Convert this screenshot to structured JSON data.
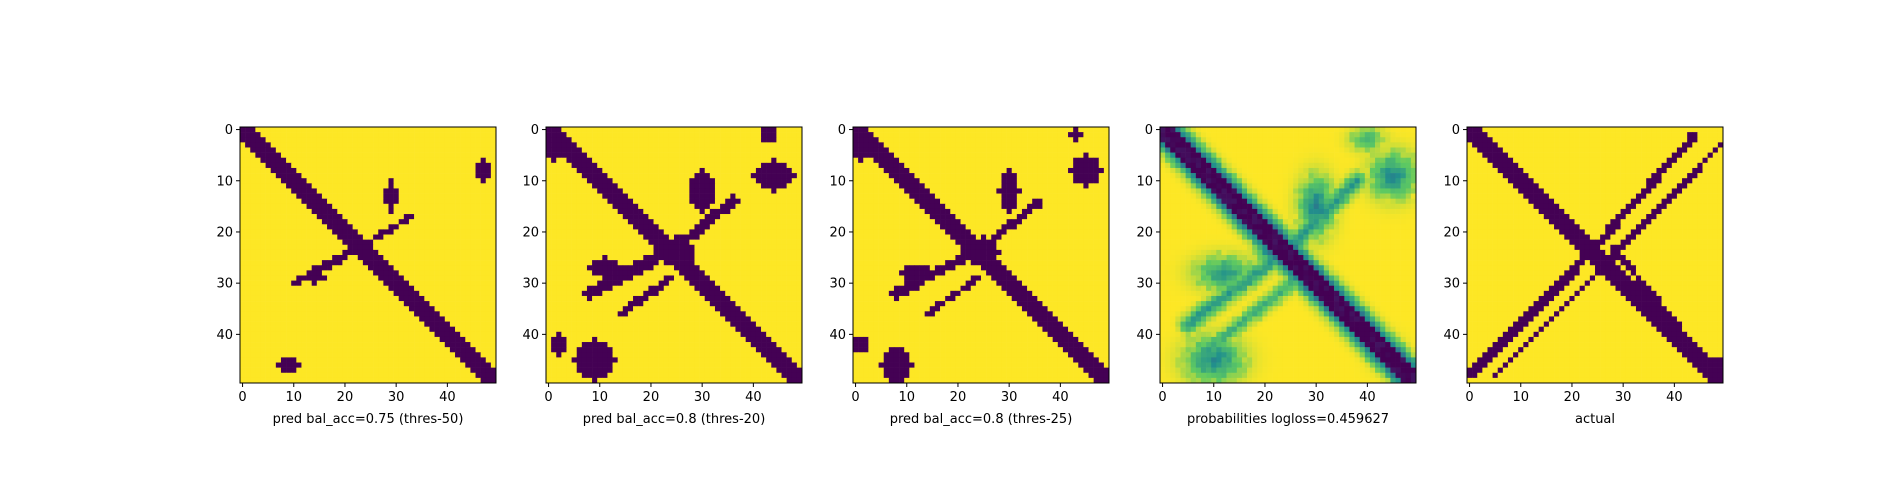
{
  "chart_data": [
    {
      "type": "heatmap",
      "label": "pred bal_acc=0.75 (thres-50)",
      "size": 50,
      "xticks": [
        0,
        10,
        20,
        30,
        40
      ],
      "yticks": [
        0,
        10,
        20,
        30,
        40
      ],
      "colormap": "viridis",
      "main_diagonal": {
        "from": [
          0,
          0
        ],
        "to": [
          49,
          49
        ],
        "width": 1.5
      },
      "blobs": [
        {
          "cx": 23,
          "cy": 23,
          "rx": 2.5,
          "ry": 2.0
        },
        {
          "cx": 29,
          "cy": 13,
          "rx": 1.2,
          "ry": 3.0
        },
        {
          "cx": 47,
          "cy": 8,
          "rx": 1.2,
          "ry": 2.0
        },
        {
          "cx": 9,
          "cy": 46,
          "rx": 2.0,
          "ry": 1.5
        },
        {
          "cx": 14,
          "cy": 29,
          "rx": 2.0,
          "ry": 1.0
        }
      ],
      "anti_segments": [
        {
          "from": [
            10,
            30
          ],
          "to": [
            23,
            23
          ],
          "width": 0.8
        },
        {
          "from": [
            23,
            23
          ],
          "to": [
            33,
            17
          ],
          "width": 0.6
        }
      ]
    },
    {
      "type": "heatmap",
      "label": "pred bal_acc=0.8 (thres-20)",
      "size": 50,
      "xticks": [
        0,
        10,
        20,
        30,
        40
      ],
      "yticks": [
        0,
        10,
        20,
        30,
        40
      ],
      "colormap": "viridis",
      "main_diagonal": {
        "from": [
          0,
          0
        ],
        "to": [
          49,
          49
        ],
        "width": 2.0
      },
      "blobs": [
        {
          "cx": 1,
          "cy": 3,
          "rx": 2.5,
          "ry": 3.0
        },
        {
          "cx": 25,
          "cy": 24,
          "rx": 3.5,
          "ry": 3.0
        },
        {
          "cx": 30,
          "cy": 12,
          "rx": 2.5,
          "ry": 4.0
        },
        {
          "cx": 44,
          "cy": 9,
          "rx": 4.0,
          "ry": 3.0
        },
        {
          "cx": 43,
          "cy": 1,
          "rx": 1.5,
          "ry": 1.5
        },
        {
          "cx": 9,
          "cy": 45,
          "rx": 4.0,
          "ry": 4.0
        },
        {
          "cx": 2,
          "cy": 42,
          "rx": 1.5,
          "ry": 2.0
        },
        {
          "cx": 11,
          "cy": 27,
          "rx": 3.0,
          "ry": 2.0
        }
      ],
      "anti_segments": [
        {
          "from": [
            8,
            32
          ],
          "to": [
            25,
            23
          ],
          "width": 1.2
        },
        {
          "from": [
            25,
            23
          ],
          "to": [
            36,
            14
          ],
          "width": 1.0
        },
        {
          "from": [
            14,
            36
          ],
          "to": [
            24,
            29
          ],
          "width": 0.8
        }
      ]
    },
    {
      "type": "heatmap",
      "label": "pred bal_acc=0.8 (thres-25)",
      "size": 50,
      "xticks": [
        0,
        10,
        20,
        30,
        40
      ],
      "yticks": [
        0,
        10,
        20,
        30,
        40
      ],
      "colormap": "viridis",
      "main_diagonal": {
        "from": [
          0,
          0
        ],
        "to": [
          49,
          49
        ],
        "width": 1.8
      },
      "blobs": [
        {
          "cx": 1,
          "cy": 3,
          "rx": 2.0,
          "ry": 3.0
        },
        {
          "cx": 25,
          "cy": 24,
          "rx": 3.0,
          "ry": 3.0
        },
        {
          "cx": 30,
          "cy": 12,
          "rx": 2.0,
          "ry": 4.0
        },
        {
          "cx": 45,
          "cy": 8,
          "rx": 3.0,
          "ry": 3.0
        },
        {
          "cx": 43,
          "cy": 1,
          "rx": 1.2,
          "ry": 1.2
        },
        {
          "cx": 8,
          "cy": 46,
          "rx": 3.0,
          "ry": 3.5
        },
        {
          "cx": 1,
          "cy": 42,
          "rx": 1.5,
          "ry": 1.5
        },
        {
          "cx": 12,
          "cy": 28,
          "rx": 3.0,
          "ry": 1.8
        }
      ],
      "anti_segments": [
        {
          "from": [
            8,
            32
          ],
          "to": [
            25,
            23
          ],
          "width": 1.0
        },
        {
          "from": [
            25,
            23
          ],
          "to": [
            36,
            14
          ],
          "width": 0.8
        },
        {
          "from": [
            14,
            36
          ],
          "to": [
            24,
            29
          ],
          "width": 0.6
        }
      ]
    },
    {
      "type": "heatmap",
      "label": "probabilities logloss=0.459627",
      "size": 50,
      "xticks": [
        0,
        10,
        20,
        30,
        40
      ],
      "yticks": [
        0,
        10,
        20,
        30,
        40
      ],
      "colormap": "viridis",
      "continuous": true,
      "main_diagonal": {
        "from": [
          0,
          0
        ],
        "to": [
          49,
          49
        ],
        "width": 1.6
      },
      "blobs": [
        {
          "cx": 30,
          "cy": 15,
          "rx": 3.0,
          "ry": 5.0,
          "v": 0.55
        },
        {
          "cx": 45,
          "cy": 9,
          "rx": 4.0,
          "ry": 4.0,
          "v": 0.5
        },
        {
          "cx": 40,
          "cy": 2,
          "rx": 3.0,
          "ry": 2.0,
          "v": 0.35
        },
        {
          "cx": 10,
          "cy": 45,
          "rx": 5.0,
          "ry": 4.0,
          "v": 0.5
        },
        {
          "cx": 12,
          "cy": 28,
          "rx": 5.0,
          "ry": 3.0,
          "v": 0.45
        },
        {
          "cx": 22,
          "cy": 23,
          "rx": 3.0,
          "ry": 3.0,
          "v": 0.8
        },
        {
          "cx": 44,
          "cy": 44,
          "rx": 3.0,
          "ry": 3.0,
          "v": 0.25
        }
      ],
      "anti_segments": [
        {
          "from": [
            5,
            38
          ],
          "to": [
            24,
            24
          ],
          "width": 1.0,
          "v": 0.45
        },
        {
          "from": [
            24,
            24
          ],
          "to": [
            38,
            10
          ],
          "width": 1.0,
          "v": 0.45
        },
        {
          "from": [
            10,
            42
          ],
          "to": [
            28,
            28
          ],
          "width": 0.8,
          "v": 0.35
        }
      ]
    },
    {
      "type": "heatmap",
      "label": "actual",
      "size": 50,
      "xticks": [
        0,
        10,
        20,
        30,
        40
      ],
      "yticks": [
        0,
        10,
        20,
        30,
        40
      ],
      "colormap": "viridis",
      "main_diagonal": {
        "from": [
          0,
          0
        ],
        "to": [
          49,
          49
        ],
        "width": 1.5
      },
      "blobs": [
        {
          "cx": 48,
          "cy": 47,
          "rx": 2.5,
          "ry": 2.5
        }
      ],
      "anti_segments": [
        {
          "from": [
            0,
            48
          ],
          "to": [
            20,
            28
          ],
          "width": 0.8
        },
        {
          "from": [
            20,
            28
          ],
          "to": [
            44,
            1
          ],
          "width": 0.8
        },
        {
          "from": [
            5,
            48
          ],
          "to": [
            23,
            30
          ],
          "width": 0.6
        },
        {
          "from": [
            23,
            30
          ],
          "to": [
            49,
            3
          ],
          "width": 0.6
        },
        {
          "from": [
            3,
            2
          ],
          "to": [
            20,
            18
          ],
          "width": 0.6
        },
        {
          "from": [
            28,
            23
          ],
          "to": [
            42,
            40
          ],
          "width": 0.6
        }
      ]
    }
  ]
}
